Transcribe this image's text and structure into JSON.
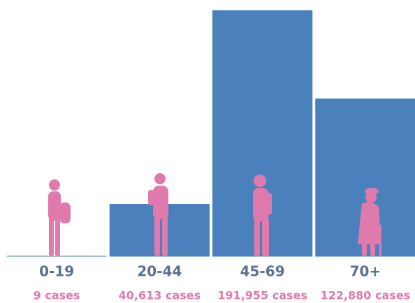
{
  "chart_data": {
    "type": "bar",
    "categories": [
      "0-19",
      "20-44",
      "45-69",
      "70+"
    ],
    "values": [
      9,
      40613,
      191955,
      122880
    ],
    "value_labels": [
      "9 cases",
      "40,613 cases",
      "191,955 cases",
      "122,880 cases"
    ],
    "color": "#4a80bb",
    "ylim": [
      0,
      192000
    ]
  }
}
